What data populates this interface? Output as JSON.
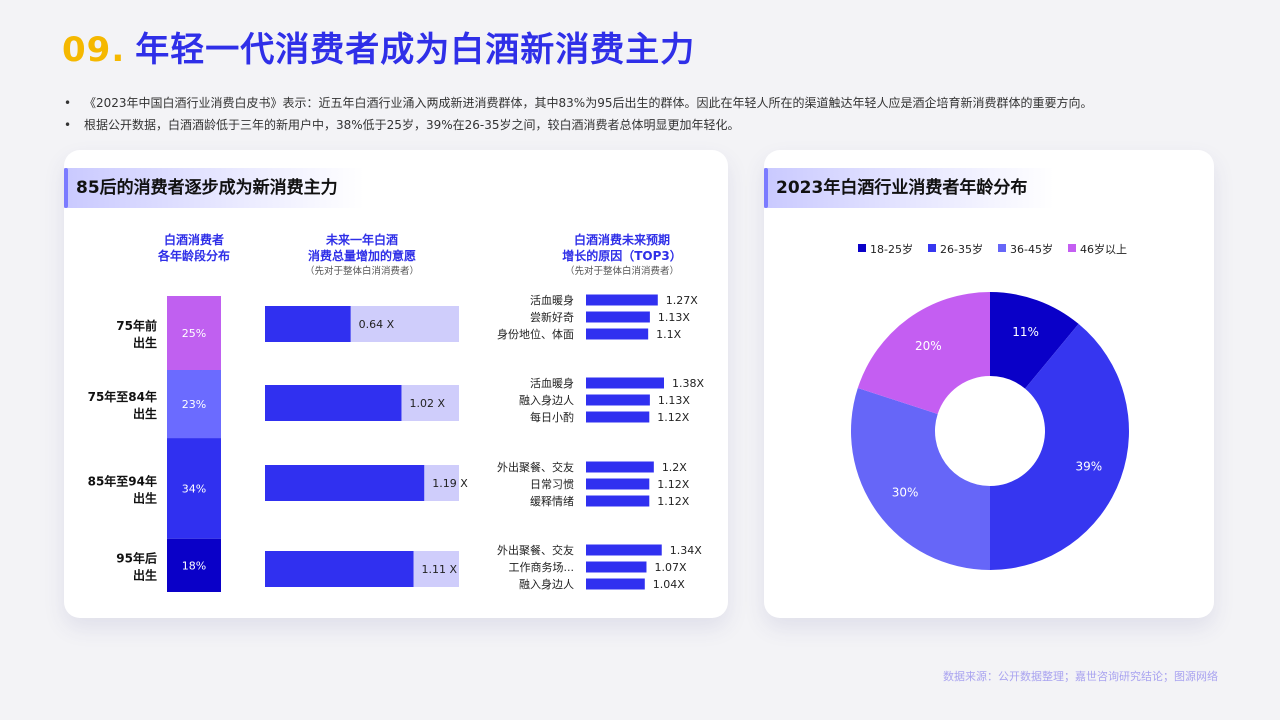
{
  "page": {
    "title_num": "09.",
    "title_text": "年轻一代消费者成为白酒新消费主力",
    "bullets": [
      "《2023年中国白酒行业消费白皮书》表示：近五年白酒行业涌入两成新进消费群体，其中83%为95后出生的群体。因此在年轻人所在的渠道触达年轻人应是酒企培育新消费群体的重要方向。",
      "根据公开数据，白酒酒龄低于三年的新用户中，38%低于25岁，39%在26-35岁之间，较白酒消费者总体明显更加年轻化。"
    ],
    "source": "数据来源：公开数据整理；嘉世咨询研究结论；图源网络"
  },
  "left_card": {
    "title": "85后的消费者逐步成为新消费主力"
  },
  "right_card": {
    "title": "2023年白酒行业消费者年龄分布"
  },
  "colors": {
    "c75_before": "#c060f0",
    "c75_84": "#6b6bff",
    "c85_94": "#3030f0",
    "c95": "#0a00c8",
    "bar_fg": "#3030f0",
    "bar_bg": "#cfcdfb",
    "col_header": "#2f2fe8",
    "pie": [
      "#0a00c8",
      "#3636f0",
      "#6666f8",
      "#c45ef2"
    ]
  },
  "chart_data": [
    {
      "type": "bar",
      "title": "白酒消费者\n各年龄段分布",
      "categories": [
        "75年前\n出生",
        "75年至84年\n出生",
        "85年至94年\n出生",
        "95年后\n出生"
      ],
      "values": [
        25,
        23,
        34,
        18
      ],
      "unit": "%",
      "labels": [
        "25%",
        "23%",
        "34%",
        "18%"
      ]
    },
    {
      "type": "bar",
      "title": "未来一年白酒\n消费总量增加的意愿",
      "subtitle": "（先对于整体白消消费者）",
      "categories": [
        "75年前出生",
        "75年至84年出生",
        "85年至94年出生",
        "95年后出生"
      ],
      "values": [
        0.64,
        1.02,
        1.19,
        1.11
      ],
      "labels": [
        "0.64 X",
        "1.02 X",
        "1.19 X",
        "1.11 X"
      ]
    },
    {
      "type": "bar",
      "title": "白酒消费未来预期\n增长的原因（TOP3）",
      "subtitle": "（先对于整体白消消费者）",
      "groups": [
        {
          "items": [
            {
              "label": "活血暖身",
              "value": 1.27,
              "text": "1.27X"
            },
            {
              "label": "尝新好奇",
              "value": 1.13,
              "text": "1.13X"
            },
            {
              "label": "身份地位、体面",
              "value": 1.1,
              "text": "1.1X"
            }
          ]
        },
        {
          "items": [
            {
              "label": "活血暖身",
              "value": 1.38,
              "text": "1.38X"
            },
            {
              "label": "融入身边人",
              "value": 1.13,
              "text": "1.13X"
            },
            {
              "label": "每日小酌",
              "value": 1.12,
              "text": "1.12X"
            }
          ]
        },
        {
          "items": [
            {
              "label": "外出聚餐、交友",
              "value": 1.2,
              "text": "1.2X"
            },
            {
              "label": "日常习惯",
              "value": 1.12,
              "text": "1.12X"
            },
            {
              "label": "缓释情绪",
              "value": 1.12,
              "text": "1.12X"
            }
          ]
        },
        {
          "items": [
            {
              "label": "外出聚餐、交友",
              "value": 1.34,
              "text": "1.34X"
            },
            {
              "label": "工作商务场...",
              "value": 1.07,
              "text": "1.07X"
            },
            {
              "label": "融入身边人",
              "value": 1.04,
              "text": "1.04X"
            }
          ]
        }
      ]
    },
    {
      "type": "pie",
      "title": "2023年白酒行业消费者年龄分布",
      "categories": [
        "18-25岁",
        "26-35岁",
        "36-45岁",
        "46岁以上"
      ],
      "values": [
        11,
        39,
        30,
        20
      ],
      "labels": [
        "11%",
        "39%",
        "30%",
        "20%"
      ],
      "legend": "top"
    }
  ]
}
